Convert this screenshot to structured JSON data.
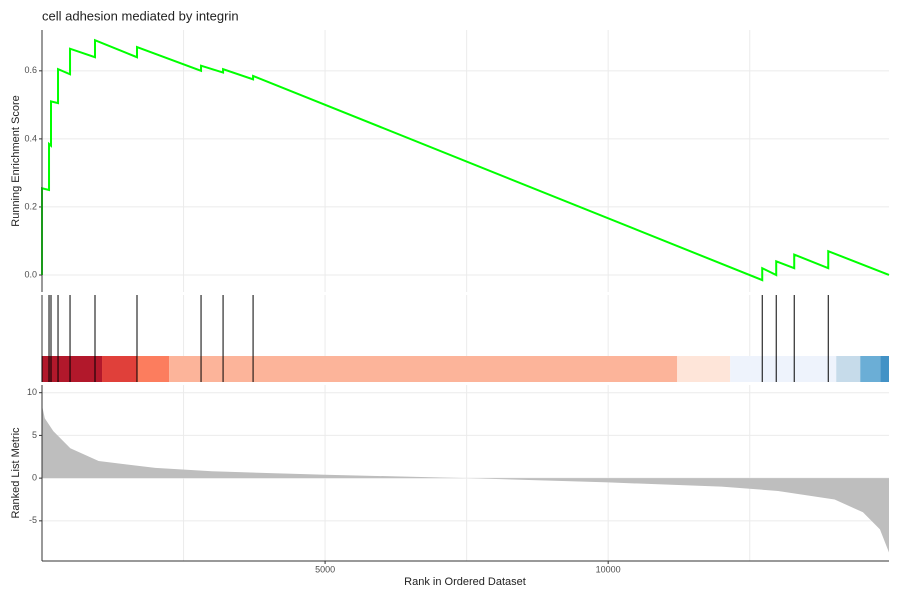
{
  "chart_data": {
    "type": "gsea",
    "title": "cell adhesion mediated by integrin",
    "xlabel": "Rank in Ordered Dataset",
    "xlim": [
      0,
      14960
    ],
    "xticks": [
      5000,
      10000
    ],
    "xgrid": [
      2500,
      5000,
      7500,
      10000,
      12500
    ],
    "running": {
      "ylabel": "Running Enrichment Score",
      "ylim": [
        -0.05,
        0.72
      ],
      "yticks": [
        {
          "value": 0,
          "label": "0.0"
        },
        0.2,
        0.4,
        0.6
      ],
      "color": "#00ff00",
      "x": [
        0,
        0,
        124,
        124,
        159,
        159,
        283,
        283,
        495,
        495,
        936,
        936,
        1678,
        1678,
        2809,
        2809,
        3198,
        3198,
        3728,
        3728,
        12721,
        12721,
        12968,
        12968,
        13286,
        13286,
        13887,
        13887,
        14960
      ],
      "values": [
        0,
        0.255,
        0.25,
        0.385,
        0.38,
        0.51,
        0.505,
        0.605,
        0.59,
        0.665,
        0.64,
        0.69,
        0.64,
        0.67,
        0.6,
        0.615,
        0.595,
        0.605,
        0.575,
        0.585,
        -0.015,
        0.02,
        0.0,
        0.04,
        0.02,
        0.06,
        0.02,
        0.07,
        0.0
      ]
    },
    "hits": [
      0,
      124,
      159,
      283,
      495,
      936,
      1678,
      2809,
      3198,
      3728,
      12721,
      12968,
      13286,
      13887
    ],
    "band": {
      "breaks": [
        0,
        1060,
        1678,
        2244,
        11219,
        12155,
        14028,
        14452,
        14806,
        14960
      ],
      "colors": [
        "#b2182b",
        "#e0403a",
        "#fc7d5e",
        "#fcb49a",
        "#fee5d9",
        "#eef3fc",
        "#c6dbea",
        "#6baed6",
        "#4292c6"
      ]
    },
    "metric": {
      "ylabel": "Ranked List Metric",
      "ylim": [
        -9.7,
        10.9
      ],
      "yticks": [
        -5,
        0,
        5,
        10
      ],
      "color": "#bebebe",
      "x": [
        0,
        50,
        200,
        500,
        1000,
        2000,
        3000,
        5000,
        7500,
        10000,
        12000,
        13000,
        14000,
        14500,
        14800,
        14960
      ],
      "values": [
        8.5,
        7,
        5.5,
        3.5,
        2,
        1.2,
        0.8,
        0.4,
        0,
        -0.5,
        -1,
        -1.5,
        -2.5,
        -4,
        -6,
        -8.7
      ]
    }
  }
}
